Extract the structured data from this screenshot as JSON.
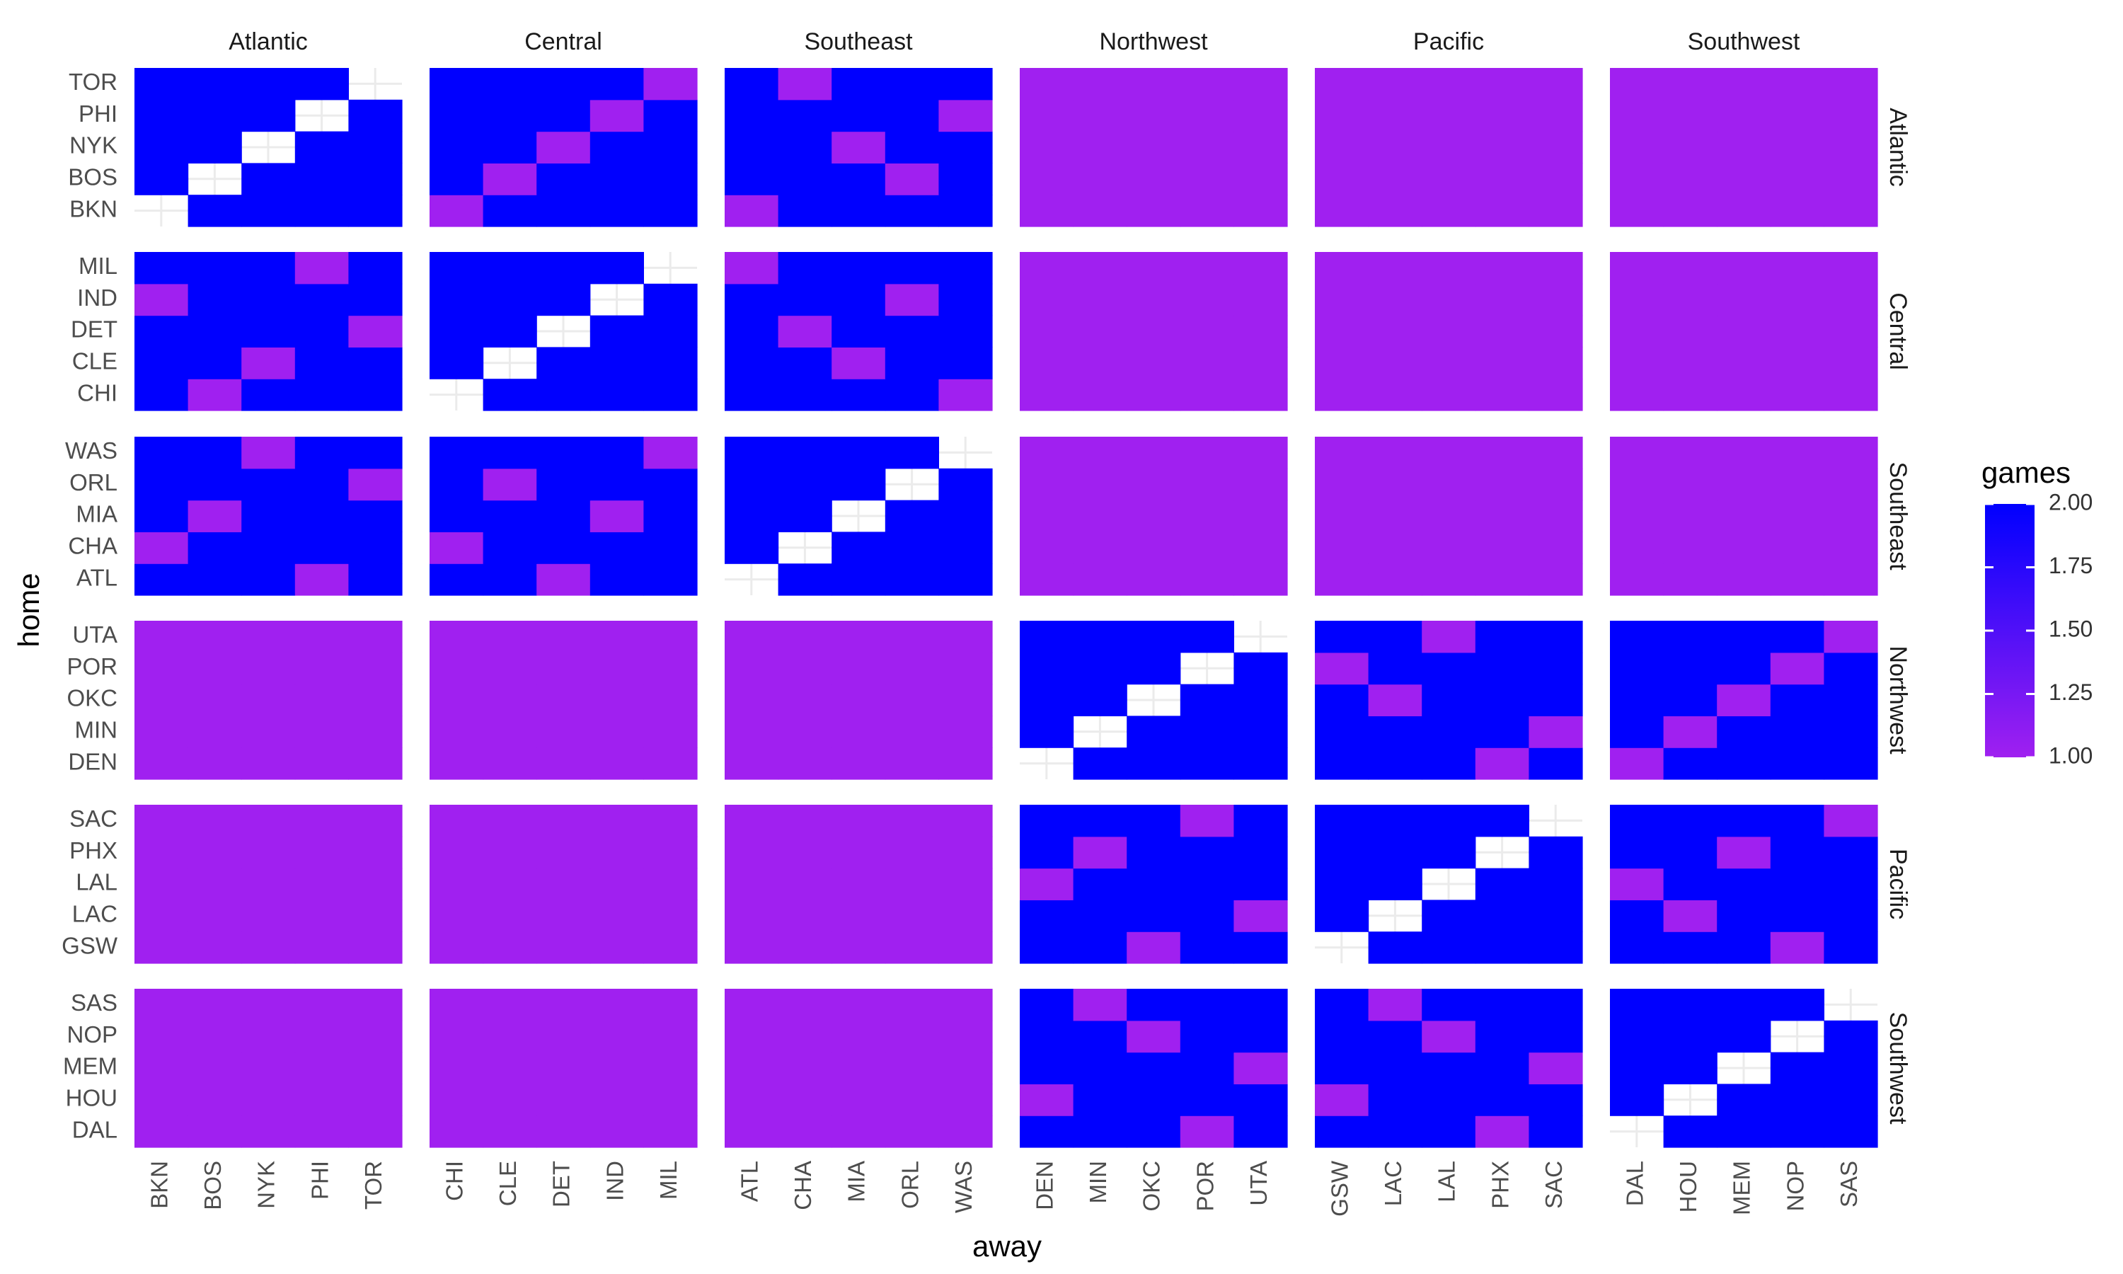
{
  "chart_data": {
    "type": "heatmap",
    "xlabel": "away",
    "ylabel": "home",
    "legend": {
      "title": "games",
      "position": "right",
      "range": [
        1,
        2
      ],
      "ticks": [
        "1.00",
        "1.25",
        "1.50",
        "1.75",
        "2.00"
      ],
      "color_low": "#a020f0",
      "color_high": "#0000ff"
    },
    "colors": {
      "low": "#a020f0",
      "high": "#0000ff",
      "grid": "#ebebeb",
      "background": "#ffffff"
    },
    "facet_cols": [
      "Atlantic",
      "Central",
      "Southeast",
      "Northwest",
      "Pacific",
      "Southwest"
    ],
    "facet_rows": [
      "Atlantic",
      "Central",
      "Southeast",
      "Northwest",
      "Pacific",
      "Southwest"
    ],
    "teams": {
      "Atlantic": [
        "BKN",
        "BOS",
        "NYK",
        "PHI",
        "TOR"
      ],
      "Central": [
        "CHI",
        "CLE",
        "DET",
        "IND",
        "MIL"
      ],
      "Southeast": [
        "ATL",
        "CHA",
        "MIA",
        "ORL",
        "WAS"
      ],
      "Northwest": [
        "DEN",
        "MIN",
        "OKC",
        "POR",
        "UTA"
      ],
      "Pacific": [
        "GSW",
        "LAC",
        "LAL",
        "PHX",
        "SAC"
      ],
      "Southwest": [
        "DAL",
        "HOU",
        "MEM",
        "NOP",
        "SAS"
      ]
    },
    "games": {
      "TOR": {
        "BKN": 2,
        "BOS": 2,
        "NYK": 2,
        "PHI": 2,
        "CHI": 2,
        "CLE": 2,
        "DET": 2,
        "IND": 2,
        "MIL": 1,
        "ATL": 2,
        "CHA": 1,
        "MIA": 2,
        "ORL": 2,
        "WAS": 2,
        "DEN": 1,
        "MIN": 1,
        "OKC": 1,
        "POR": 1,
        "UTA": 1,
        "GSW": 1,
        "LAC": 1,
        "LAL": 1,
        "PHX": 1,
        "SAC": 1,
        "DAL": 1,
        "HOU": 1,
        "MEM": 1,
        "NOP": 1,
        "SAS": 1
      },
      "PHI": {
        "BKN": 2,
        "BOS": 2,
        "NYK": 2,
        "TOR": 2,
        "CHI": 2,
        "CLE": 2,
        "DET": 2,
        "IND": 1,
        "MIL": 2,
        "ATL": 2,
        "CHA": 2,
        "MIA": 2,
        "ORL": 2,
        "WAS": 1,
        "DEN": 1,
        "MIN": 1,
        "OKC": 1,
        "POR": 1,
        "UTA": 1,
        "GSW": 1,
        "LAC": 1,
        "LAL": 1,
        "PHX": 1,
        "SAC": 1,
        "DAL": 1,
        "HOU": 1,
        "MEM": 1,
        "NOP": 1,
        "SAS": 1
      },
      "NYK": {
        "BKN": 2,
        "BOS": 2,
        "PHI": 2,
        "TOR": 2,
        "CHI": 2,
        "CLE": 2,
        "DET": 1,
        "IND": 2,
        "MIL": 2,
        "ATL": 2,
        "CHA": 2,
        "MIA": 1,
        "ORL": 2,
        "WAS": 2,
        "DEN": 1,
        "MIN": 1,
        "OKC": 1,
        "POR": 1,
        "UTA": 1,
        "GSW": 1,
        "LAC": 1,
        "LAL": 1,
        "PHX": 1,
        "SAC": 1,
        "DAL": 1,
        "HOU": 1,
        "MEM": 1,
        "NOP": 1,
        "SAS": 1
      },
      "BOS": {
        "BKN": 2,
        "NYK": 2,
        "PHI": 2,
        "TOR": 2,
        "CHI": 2,
        "CLE": 1,
        "DET": 2,
        "IND": 2,
        "MIL": 2,
        "ATL": 2,
        "CHA": 2,
        "MIA": 2,
        "ORL": 1,
        "WAS": 2,
        "DEN": 1,
        "MIN": 1,
        "OKC": 1,
        "POR": 1,
        "UTA": 1,
        "GSW": 1,
        "LAC": 1,
        "LAL": 1,
        "PHX": 1,
        "SAC": 1,
        "DAL": 1,
        "HOU": 1,
        "MEM": 1,
        "NOP": 1,
        "SAS": 1
      },
      "BKN": {
        "BOS": 2,
        "NYK": 2,
        "PHI": 2,
        "TOR": 2,
        "CHI": 1,
        "CLE": 2,
        "DET": 2,
        "IND": 2,
        "MIL": 2,
        "ATL": 1,
        "CHA": 2,
        "MIA": 2,
        "ORL": 2,
        "WAS": 2,
        "DEN": 1,
        "MIN": 1,
        "OKC": 1,
        "POR": 1,
        "UTA": 1,
        "GSW": 1,
        "LAC": 1,
        "LAL": 1,
        "PHX": 1,
        "SAC": 1,
        "DAL": 1,
        "HOU": 1,
        "MEM": 1,
        "NOP": 1,
        "SAS": 1
      },
      "MIL": {
        "BKN": 2,
        "BOS": 2,
        "NYK": 2,
        "PHI": 1,
        "TOR": 2,
        "CHI": 2,
        "CLE": 2,
        "DET": 2,
        "IND": 2,
        "ATL": 1,
        "CHA": 2,
        "MIA": 2,
        "ORL": 2,
        "WAS": 2,
        "DEN": 1,
        "MIN": 1,
        "OKC": 1,
        "POR": 1,
        "UTA": 1,
        "GSW": 1,
        "LAC": 1,
        "LAL": 1,
        "PHX": 1,
        "SAC": 1,
        "DAL": 1,
        "HOU": 1,
        "MEM": 1,
        "NOP": 1,
        "SAS": 1
      },
      "IND": {
        "BKN": 1,
        "BOS": 2,
        "NYK": 2,
        "PHI": 2,
        "TOR": 2,
        "CHI": 2,
        "CLE": 2,
        "DET": 2,
        "MIL": 2,
        "ATL": 2,
        "CHA": 2,
        "MIA": 2,
        "ORL": 1,
        "WAS": 2,
        "DEN": 1,
        "MIN": 1,
        "OKC": 1,
        "POR": 1,
        "UTA": 1,
        "GSW": 1,
        "LAC": 1,
        "LAL": 1,
        "PHX": 1,
        "SAC": 1,
        "DAL": 1,
        "HOU": 1,
        "MEM": 1,
        "NOP": 1,
        "SAS": 1
      },
      "DET": {
        "BKN": 2,
        "BOS": 2,
        "NYK": 2,
        "PHI": 2,
        "TOR": 1,
        "CHI": 2,
        "CLE": 2,
        "IND": 2,
        "MIL": 2,
        "ATL": 2,
        "CHA": 1,
        "MIA": 2,
        "ORL": 2,
        "WAS": 2,
        "DEN": 1,
        "MIN": 1,
        "OKC": 1,
        "POR": 1,
        "UTA": 1,
        "GSW": 1,
        "LAC": 1,
        "LAL": 1,
        "PHX": 1,
        "SAC": 1,
        "DAL": 1,
        "HOU": 1,
        "MEM": 1,
        "NOP": 1,
        "SAS": 1
      },
      "CLE": {
        "BKN": 2,
        "BOS": 2,
        "NYK": 1,
        "PHI": 2,
        "TOR": 2,
        "CHI": 2,
        "DET": 2,
        "IND": 2,
        "MIL": 2,
        "ATL": 2,
        "CHA": 2,
        "MIA": 1,
        "ORL": 2,
        "WAS": 2,
        "DEN": 1,
        "MIN": 1,
        "OKC": 1,
        "POR": 1,
        "UTA": 1,
        "GSW": 1,
        "LAC": 1,
        "LAL": 1,
        "PHX": 1,
        "SAC": 1,
        "DAL": 1,
        "HOU": 1,
        "MEM": 1,
        "NOP": 1,
        "SAS": 1
      },
      "CHI": {
        "BKN": 2,
        "BOS": 1,
        "NYK": 2,
        "PHI": 2,
        "TOR": 2,
        "CLE": 2,
        "DET": 2,
        "IND": 2,
        "MIL": 2,
        "ATL": 2,
        "CHA": 2,
        "MIA": 2,
        "ORL": 2,
        "WAS": 1,
        "DEN": 1,
        "MIN": 1,
        "OKC": 1,
        "POR": 1,
        "UTA": 1,
        "GSW": 1,
        "LAC": 1,
        "LAL": 1,
        "PHX": 1,
        "SAC": 1,
        "DAL": 1,
        "HOU": 1,
        "MEM": 1,
        "NOP": 1,
        "SAS": 1
      },
      "WAS": {
        "BKN": 2,
        "BOS": 2,
        "NYK": 1,
        "PHI": 2,
        "TOR": 2,
        "CHI": 2,
        "CLE": 2,
        "DET": 2,
        "IND": 2,
        "MIL": 1,
        "ATL": 2,
        "CHA": 2,
        "MIA": 2,
        "ORL": 2,
        "DEN": 1,
        "MIN": 1,
        "OKC": 1,
        "POR": 1,
        "UTA": 1,
        "GSW": 1,
        "LAC": 1,
        "LAL": 1,
        "PHX": 1,
        "SAC": 1,
        "DAL": 1,
        "HOU": 1,
        "MEM": 1,
        "NOP": 1,
        "SAS": 1
      },
      "ORL": {
        "BKN": 2,
        "BOS": 2,
        "NYK": 2,
        "PHI": 2,
        "TOR": 1,
        "CHI": 2,
        "CLE": 1,
        "DET": 2,
        "IND": 2,
        "MIL": 2,
        "ATL": 2,
        "CHA": 2,
        "MIA": 2,
        "WAS": 2,
        "DEN": 1,
        "MIN": 1,
        "OKC": 1,
        "POR": 1,
        "UTA": 1,
        "GSW": 1,
        "LAC": 1,
        "LAL": 1,
        "PHX": 1,
        "SAC": 1,
        "DAL": 1,
        "HOU": 1,
        "MEM": 1,
        "NOP": 1,
        "SAS": 1
      },
      "MIA": {
        "BKN": 2,
        "BOS": 1,
        "NYK": 2,
        "PHI": 2,
        "TOR": 2,
        "CHI": 2,
        "CLE": 2,
        "DET": 2,
        "IND": 1,
        "MIL": 2,
        "ATL": 2,
        "CHA": 2,
        "ORL": 2,
        "WAS": 2,
        "DEN": 1,
        "MIN": 1,
        "OKC": 1,
        "POR": 1,
        "UTA": 1,
        "GSW": 1,
        "LAC": 1,
        "LAL": 1,
        "PHX": 1,
        "SAC": 1,
        "DAL": 1,
        "HOU": 1,
        "MEM": 1,
        "NOP": 1,
        "SAS": 1
      },
      "CHA": {
        "BKN": 1,
        "BOS": 2,
        "NYK": 2,
        "PHI": 2,
        "TOR": 2,
        "CHI": 1,
        "CLE": 2,
        "DET": 2,
        "IND": 2,
        "MIL": 2,
        "ATL": 2,
        "MIA": 2,
        "ORL": 2,
        "WAS": 2,
        "DEN": 1,
        "MIN": 1,
        "OKC": 1,
        "POR": 1,
        "UTA": 1,
        "GSW": 1,
        "LAC": 1,
        "LAL": 1,
        "PHX": 1,
        "SAC": 1,
        "DAL": 1,
        "HOU": 1,
        "MEM": 1,
        "NOP": 1,
        "SAS": 1
      },
      "ATL": {
        "BKN": 2,
        "BOS": 2,
        "NYK": 2,
        "PHI": 1,
        "TOR": 2,
        "CHI": 2,
        "CLE": 2,
        "DET": 1,
        "IND": 2,
        "MIL": 2,
        "CHA": 2,
        "MIA": 2,
        "ORL": 2,
        "WAS": 2,
        "DEN": 1,
        "MIN": 1,
        "OKC": 1,
        "POR": 1,
        "UTA": 1,
        "GSW": 1,
        "LAC": 1,
        "LAL": 1,
        "PHX": 1,
        "SAC": 1,
        "DAL": 1,
        "HOU": 1,
        "MEM": 1,
        "NOP": 1,
        "SAS": 1
      },
      "UTA": {
        "BKN": 1,
        "BOS": 1,
        "NYK": 1,
        "PHI": 1,
        "TOR": 1,
        "CHI": 1,
        "CLE": 1,
        "DET": 1,
        "IND": 1,
        "MIL": 1,
        "ATL": 1,
        "CHA": 1,
        "MIA": 1,
        "ORL": 1,
        "WAS": 1,
        "DEN": 2,
        "MIN": 2,
        "OKC": 2,
        "POR": 2,
        "GSW": 2,
        "LAC": 2,
        "LAL": 1,
        "PHX": 2,
        "SAC": 2,
        "DAL": 2,
        "HOU": 2,
        "MEM": 2,
        "NOP": 2,
        "SAS": 1
      },
      "POR": {
        "BKN": 1,
        "BOS": 1,
        "NYK": 1,
        "PHI": 1,
        "TOR": 1,
        "CHI": 1,
        "CLE": 1,
        "DET": 1,
        "IND": 1,
        "MIL": 1,
        "ATL": 1,
        "CHA": 1,
        "MIA": 1,
        "ORL": 1,
        "WAS": 1,
        "DEN": 2,
        "MIN": 2,
        "OKC": 2,
        "UTA": 2,
        "GSW": 1,
        "LAC": 2,
        "LAL": 2,
        "PHX": 2,
        "SAC": 2,
        "DAL": 2,
        "HOU": 2,
        "MEM": 2,
        "NOP": 1,
        "SAS": 2
      },
      "OKC": {
        "BKN": 1,
        "BOS": 1,
        "NYK": 1,
        "PHI": 1,
        "TOR": 1,
        "CHI": 1,
        "CLE": 1,
        "DET": 1,
        "IND": 1,
        "MIL": 1,
        "ATL": 1,
        "CHA": 1,
        "MIA": 1,
        "ORL": 1,
        "WAS": 1,
        "DEN": 2,
        "MIN": 2,
        "POR": 2,
        "UTA": 2,
        "GSW": 2,
        "LAC": 1,
        "LAL": 2,
        "PHX": 2,
        "SAC": 2,
        "DAL": 2,
        "HOU": 2,
        "MEM": 1,
        "NOP": 2,
        "SAS": 2
      },
      "MIN": {
        "BKN": 1,
        "BOS": 1,
        "NYK": 1,
        "PHI": 1,
        "TOR": 1,
        "CHI": 1,
        "CLE": 1,
        "DET": 1,
        "IND": 1,
        "MIL": 1,
        "ATL": 1,
        "CHA": 1,
        "MIA": 1,
        "ORL": 1,
        "WAS": 1,
        "DEN": 2,
        "OKC": 2,
        "POR": 2,
        "UTA": 2,
        "GSW": 2,
        "LAC": 2,
        "LAL": 2,
        "PHX": 2,
        "SAC": 1,
        "DAL": 2,
        "HOU": 1,
        "MEM": 2,
        "NOP": 2,
        "SAS": 2
      },
      "DEN": {
        "BKN": 1,
        "BOS": 1,
        "NYK": 1,
        "PHI": 1,
        "TOR": 1,
        "CHI": 1,
        "CLE": 1,
        "DET": 1,
        "IND": 1,
        "MIL": 1,
        "ATL": 1,
        "CHA": 1,
        "MIA": 1,
        "ORL": 1,
        "WAS": 1,
        "MIN": 2,
        "OKC": 2,
        "POR": 2,
        "UTA": 2,
        "GSW": 2,
        "LAC": 2,
        "LAL": 2,
        "PHX": 1,
        "SAC": 2,
        "DAL": 1,
        "HOU": 2,
        "MEM": 2,
        "NOP": 2,
        "SAS": 2
      },
      "SAC": {
        "BKN": 1,
        "BOS": 1,
        "NYK": 1,
        "PHI": 1,
        "TOR": 1,
        "CHI": 1,
        "CLE": 1,
        "DET": 1,
        "IND": 1,
        "MIL": 1,
        "ATL": 1,
        "CHA": 1,
        "MIA": 1,
        "ORL": 1,
        "WAS": 1,
        "DEN": 2,
        "MIN": 2,
        "OKC": 2,
        "POR": 1,
        "UTA": 2,
        "GSW": 2,
        "LAC": 2,
        "LAL": 2,
        "PHX": 2,
        "DAL": 2,
        "HOU": 2,
        "MEM": 2,
        "NOP": 2,
        "SAS": 1
      },
      "PHX": {
        "BKN": 1,
        "BOS": 1,
        "NYK": 1,
        "PHI": 1,
        "TOR": 1,
        "CHI": 1,
        "CLE": 1,
        "DET": 1,
        "IND": 1,
        "MIL": 1,
        "ATL": 1,
        "CHA": 1,
        "MIA": 1,
        "ORL": 1,
        "WAS": 1,
        "DEN": 2,
        "MIN": 1,
        "OKC": 2,
        "POR": 2,
        "UTA": 2,
        "GSW": 2,
        "LAC": 2,
        "LAL": 2,
        "SAC": 2,
        "DAL": 2,
        "HOU": 2,
        "MEM": 1,
        "NOP": 2,
        "SAS": 2
      },
      "LAL": {
        "BKN": 1,
        "BOS": 1,
        "NYK": 1,
        "PHI": 1,
        "TOR": 1,
        "CHI": 1,
        "CLE": 1,
        "DET": 1,
        "IND": 1,
        "MIL": 1,
        "ATL": 1,
        "CHA": 1,
        "MIA": 1,
        "ORL": 1,
        "WAS": 1,
        "DEN": 1,
        "MIN": 2,
        "OKC": 2,
        "POR": 2,
        "UTA": 2,
        "GSW": 2,
        "LAC": 2,
        "PHX": 2,
        "SAC": 2,
        "DAL": 1,
        "HOU": 2,
        "MEM": 2,
        "NOP": 2,
        "SAS": 2
      },
      "LAC": {
        "BKN": 1,
        "BOS": 1,
        "NYK": 1,
        "PHI": 1,
        "TOR": 1,
        "CHI": 1,
        "CLE": 1,
        "DET": 1,
        "IND": 1,
        "MIL": 1,
        "ATL": 1,
        "CHA": 1,
        "MIA": 1,
        "ORL": 1,
        "WAS": 1,
        "DEN": 2,
        "MIN": 2,
        "OKC": 2,
        "POR": 2,
        "UTA": 1,
        "GSW": 2,
        "LAL": 2,
        "PHX": 2,
        "SAC": 2,
        "DAL": 2,
        "HOU": 1,
        "MEM": 2,
        "NOP": 2,
        "SAS": 2
      },
      "GSW": {
        "BKN": 1,
        "BOS": 1,
        "NYK": 1,
        "PHI": 1,
        "TOR": 1,
        "CHI": 1,
        "CLE": 1,
        "DET": 1,
        "IND": 1,
        "MIL": 1,
        "ATL": 1,
        "CHA": 1,
        "MIA": 1,
        "ORL": 1,
        "WAS": 1,
        "DEN": 2,
        "MIN": 2,
        "OKC": 1,
        "POR": 2,
        "UTA": 2,
        "LAC": 2,
        "LAL": 2,
        "PHX": 2,
        "SAC": 2,
        "DAL": 2,
        "HOU": 2,
        "MEM": 2,
        "NOP": 1,
        "SAS": 2
      },
      "SAS": {
        "BKN": 1,
        "BOS": 1,
        "NYK": 1,
        "PHI": 1,
        "TOR": 1,
        "CHI": 1,
        "CLE": 1,
        "DET": 1,
        "IND": 1,
        "MIL": 1,
        "ATL": 1,
        "CHA": 1,
        "MIA": 1,
        "ORL": 1,
        "WAS": 1,
        "DEN": 2,
        "MIN": 1,
        "OKC": 2,
        "POR": 2,
        "UTA": 2,
        "GSW": 2,
        "LAC": 1,
        "LAL": 2,
        "PHX": 2,
        "SAC": 2,
        "DAL": 2,
        "HOU": 2,
        "MEM": 2,
        "NOP": 2
      },
      "NOP": {
        "BKN": 1,
        "BOS": 1,
        "NYK": 1,
        "PHI": 1,
        "TOR": 1,
        "CHI": 1,
        "CLE": 1,
        "DET": 1,
        "IND": 1,
        "MIL": 1,
        "ATL": 1,
        "CHA": 1,
        "MIA": 1,
        "ORL": 1,
        "WAS": 1,
        "DEN": 2,
        "MIN": 2,
        "OKC": 1,
        "POR": 2,
        "UTA": 2,
        "GSW": 2,
        "LAC": 2,
        "LAL": 1,
        "PHX": 2,
        "SAC": 2,
        "DAL": 2,
        "HOU": 2,
        "MEM": 2,
        "SAS": 2
      },
      "MEM": {
        "BKN": 1,
        "BOS": 1,
        "NYK": 1,
        "PHI": 1,
        "TOR": 1,
        "CHI": 1,
        "CLE": 1,
        "DET": 1,
        "IND": 1,
        "MIL": 1,
        "ATL": 1,
        "CHA": 1,
        "MIA": 1,
        "ORL": 1,
        "WAS": 1,
        "DEN": 2,
        "MIN": 2,
        "OKC": 2,
        "POR": 2,
        "UTA": 1,
        "GSW": 2,
        "LAC": 2,
        "LAL": 2,
        "PHX": 2,
        "SAC": 1,
        "DAL": 2,
        "HOU": 2,
        "NOP": 2,
        "SAS": 2
      },
      "HOU": {
        "BKN": 1,
        "BOS": 1,
        "NYK": 1,
        "PHI": 1,
        "TOR": 1,
        "CHI": 1,
        "CLE": 1,
        "DET": 1,
        "IND": 1,
        "MIL": 1,
        "ATL": 1,
        "CHA": 1,
        "MIA": 1,
        "ORL": 1,
        "WAS": 1,
        "DEN": 1,
        "MIN": 2,
        "OKC": 2,
        "POR": 2,
        "UTA": 2,
        "GSW": 1,
        "LAC": 2,
        "LAL": 2,
        "PHX": 2,
        "SAC": 2,
        "DAL": 2,
        "MEM": 2,
        "NOP": 2,
        "SAS": 2
      },
      "DAL": {
        "BKN": 1,
        "BOS": 1,
        "NYK": 1,
        "PHI": 1,
        "TOR": 1,
        "CHI": 1,
        "CLE": 1,
        "DET": 1,
        "IND": 1,
        "MIL": 1,
        "ATL": 1,
        "CHA": 1,
        "MIA": 1,
        "ORL": 1,
        "WAS": 1,
        "DEN": 2,
        "MIN": 2,
        "OKC": 2,
        "POR": 1,
        "UTA": 2,
        "GSW": 2,
        "LAC": 2,
        "LAL": 2,
        "PHX": 1,
        "SAC": 2,
        "HOU": 2,
        "MEM": 2,
        "NOP": 2,
        "SAS": 2
      }
    }
  }
}
